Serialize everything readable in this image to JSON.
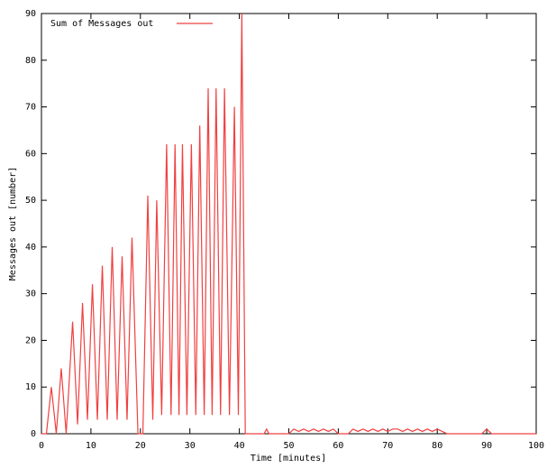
{
  "chart_data": {
    "type": "line",
    "xlabel": "Time [minutes]",
    "ylabel": "Messages out [number]",
    "legend": "top-left",
    "x": [
      0,
      1,
      2,
      3,
      4,
      5,
      6.3,
      7.3,
      8.3,
      9.3,
      10.3,
      11.3,
      12.3,
      13.3,
      14.3,
      15.3,
      16.3,
      17.3,
      18.3,
      19.5,
      20.5,
      21.5,
      22.5,
      23.3,
      24.3,
      25.3,
      26.2,
      27,
      27.8,
      28.5,
      29.4,
      30.3,
      31.2,
      32,
      32.9,
      33.7,
      34.5,
      35.3,
      36.2,
      37,
      38,
      39,
      39.8,
      40.5,
      41.2,
      45,
      45.5,
      46,
      50,
      51,
      52,
      53,
      54,
      55,
      56,
      57,
      58,
      59,
      60,
      62,
      63,
      64,
      65,
      66,
      67,
      68,
      69,
      70,
      71,
      72,
      73,
      74,
      75,
      76,
      77,
      78,
      79,
      80,
      81,
      82,
      89,
      90,
      91,
      92,
      100
    ],
    "series": [
      {
        "name": "Sum of Messages out",
        "color": "#f04040",
        "values": [
          0,
          0,
          10,
          0,
          14,
          0,
          24,
          2,
          28,
          3,
          32,
          3,
          36,
          3,
          40,
          3,
          38,
          3,
          42,
          0,
          0,
          51,
          3,
          50,
          4,
          62,
          4,
          62,
          4,
          62,
          4,
          62,
          4,
          66,
          4,
          74,
          4,
          74,
          4,
          74,
          4,
          70,
          4,
          90,
          0,
          0,
          1,
          0,
          0,
          1,
          0.5,
          1,
          0.5,
          1,
          0.5,
          1,
          0.5,
          1,
          0,
          0,
          1,
          0.5,
          1,
          0.5,
          1,
          0.5,
          1,
          0.5,
          1,
          1,
          0.5,
          1,
          0.5,
          1,
          0.5,
          1,
          0.5,
          1,
          0.5,
          0,
          0,
          1,
          0,
          0,
          0
        ]
      }
    ],
    "xlim": [
      0,
      100
    ],
    "xticks": [
      0,
      10,
      20,
      30,
      40,
      50,
      60,
      70,
      80,
      90,
      100
    ],
    "ylim": [
      0,
      90
    ],
    "yticks": [
      0,
      10,
      20,
      30,
      40,
      50,
      60,
      70,
      80,
      90
    ],
    "grid": false
  }
}
